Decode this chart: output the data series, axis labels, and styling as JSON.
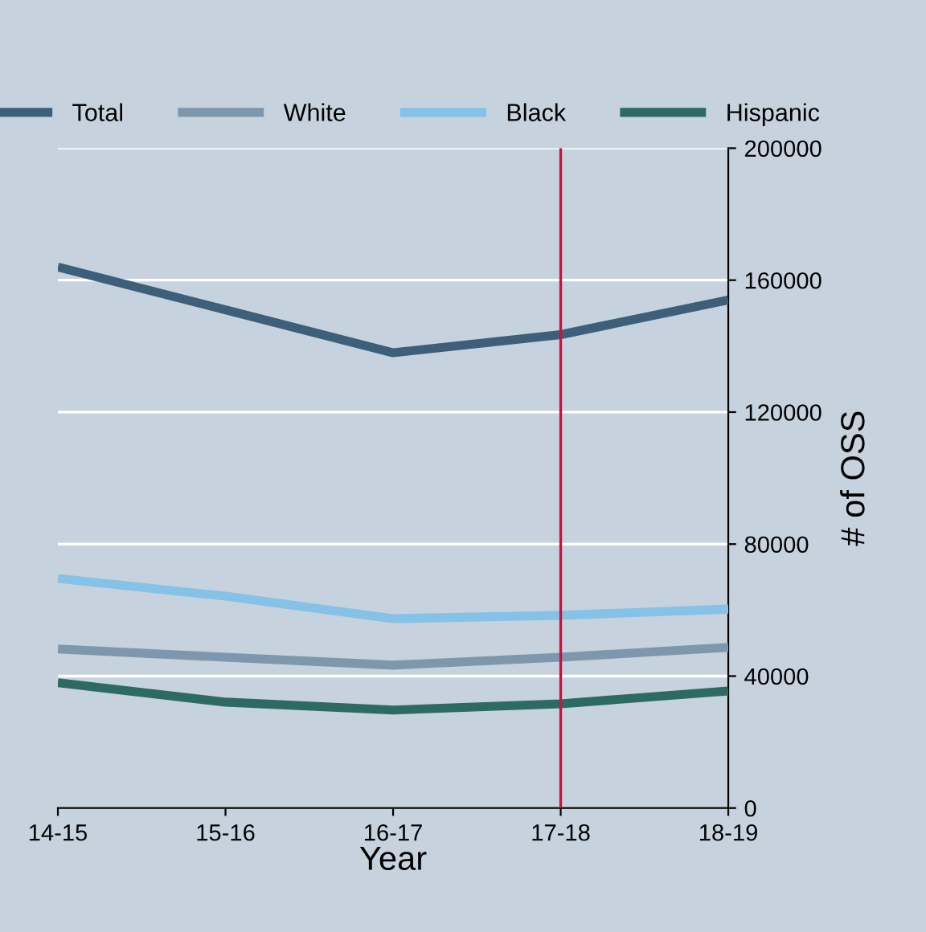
{
  "chart_data": {
    "type": "line",
    "xlabel": "Year",
    "ylabel": "# of OSS",
    "categories": [
      "14-15",
      "15-16",
      "16-17",
      "17-18",
      "18-19"
    ],
    "series": [
      {
        "name": "Total",
        "color": "#3e5f7a",
        "values": [
          164000,
          151000,
          138000,
          143500,
          154000
        ]
      },
      {
        "name": "White",
        "color": "#7f97ad",
        "values": [
          48200,
          45700,
          43300,
          45700,
          48700
        ]
      },
      {
        "name": "Black",
        "color": "#86c1e8",
        "values": [
          69600,
          64200,
          57400,
          58400,
          60300
        ]
      },
      {
        "name": "Hispanic",
        "color": "#2d6a62",
        "values": [
          38000,
          32100,
          29700,
          31600,
          35500
        ]
      }
    ],
    "ylim": [
      0,
      200000
    ],
    "yticks": [
      0,
      40000,
      80000,
      120000,
      160000,
      200000
    ],
    "grid": "y",
    "legend": "top",
    "marker": "none",
    "line_style": "solid",
    "ref_lines": [
      {
        "axis": "x",
        "value": "17-18",
        "color": "#d0103a"
      }
    ]
  }
}
